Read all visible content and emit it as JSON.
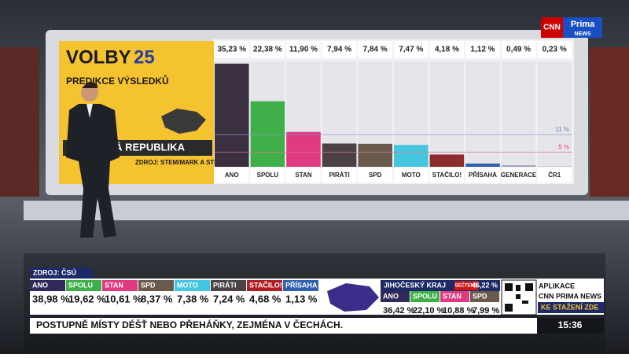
{
  "chart_data": {
    "type": "bar",
    "categories": [
      "ANO",
      "SPOLU",
      "STAN",
      "PIRÁTI",
      "SPD",
      "MOTO",
      "STAČILO!",
      "PŘÍSAHA",
      "GENERACE",
      "ČR1"
    ],
    "values": [
      35.23,
      22.38,
      11.9,
      7.94,
      7.84,
      7.47,
      4.18,
      1.12,
      0.49,
      0.23
    ],
    "value_labels": [
      "35,23 %",
      "22,38 %",
      "11,90 %",
      "7,94 %",
      "7,84 %",
      "7,47 %",
      "4,18 %",
      "1,12 %",
      "0,49 %",
      "0,23 %"
    ],
    "colors": [
      "#3b3040",
      "#3fb049",
      "#e03a80",
      "#4a4244",
      "#6a5a4c",
      "#45c6de",
      "#8c2c2e",
      "#2f5fae",
      "#9aa0b8",
      "#c9c9cf"
    ],
    "ylim": [
      0,
      36
    ],
    "reference_lines": [
      {
        "value": 11,
        "label": "11 %",
        "color": "#8a98c8"
      },
      {
        "value": 5,
        "label": "5 %",
        "color": "#e07890"
      }
    ]
  },
  "panel": {
    "title": "VOLBY",
    "year": "25",
    "subtitle": "PREDIKCE VÝSLEDKŮ",
    "region": "ČESKÁ REPUBLIKA",
    "source": "ZDROJ: STEM/MARK A STEM"
  },
  "logo": {
    "cnn": "CNN",
    "prima": "Prima",
    "news": "NEWS"
  },
  "strip": {
    "source": "ZDROJ: ČSÚ",
    "items": [
      {
        "name": "ANO",
        "value": "38,98 %",
        "color": "#2f2a5a"
      },
      {
        "name": "SPOLU",
        "value": "19,62 %",
        "color": "#3fb049"
      },
      {
        "name": "STAN",
        "value": "10,61 %",
        "color": "#e03a80"
      },
      {
        "name": "SPD",
        "value": "8,37 %",
        "color": "#6a5a4c"
      },
      {
        "name": "MOTO",
        "value": "7,38 %",
        "color": "#45c6de"
      },
      {
        "name": "PIRÁTI",
        "value": "7,24 %",
        "color": "#4a4244"
      },
      {
        "name": "STAČILO!",
        "value": "4,68 %",
        "color": "#b01c24"
      },
      {
        "name": "PŘÍSAHA",
        "value": "1,13 %",
        "color": "#2f5fae"
      }
    ],
    "region": "JIHOČESKÝ KRAJ",
    "counted_label": "SEČTENO",
    "counted": "46,22 %",
    "region_items": [
      {
        "name": "ANO",
        "value": "36,42 %",
        "color": "#2f2a5a"
      },
      {
        "name": "SPOLU",
        "value": "22,10 %",
        "color": "#3fb049"
      },
      {
        "name": "STAN",
        "value": "10,88 %",
        "color": "#e03a80"
      },
      {
        "name": "SPD",
        "value": "7,99 %",
        "color": "#6a5a4c"
      }
    ],
    "app": [
      "APLIKACE",
      "CNN PRIMA NEWS"
    ],
    "app_link": "KE STAŽENÍ ZDE"
  },
  "ticker": {
    "text": "POSTUPNĚ MÍSTY DÉŠŤ NEBO PŘEHÁŇKY, ZEJMÉNA V ČECHÁCH.",
    "time": "15:36"
  }
}
